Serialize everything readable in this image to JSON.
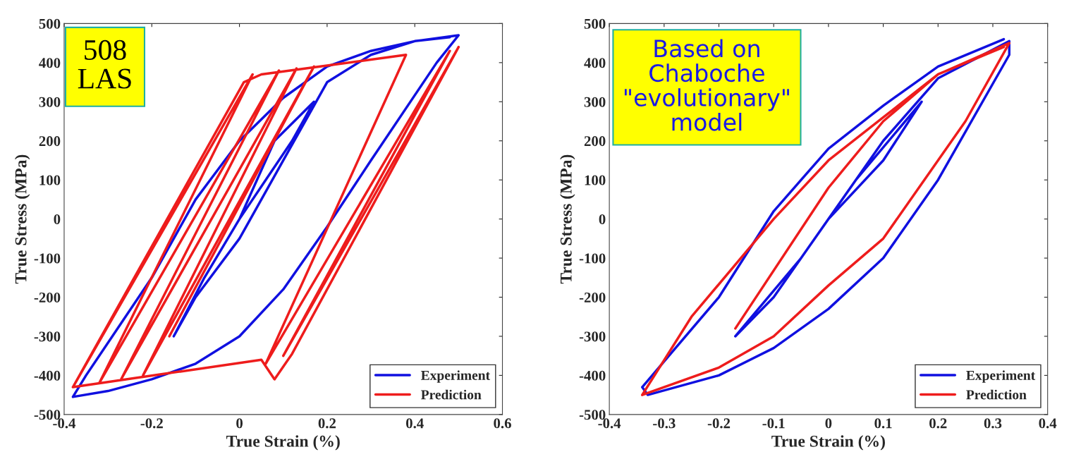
{
  "chart_data": [
    {
      "type": "line",
      "xlabel": "True Strain (%)",
      "ylabel": "True Stress (MPa)",
      "xlim": [
        -0.4,
        0.6
      ],
      "xticks": [
        -0.4,
        -0.2,
        0,
        0.2,
        0.4,
        0.6
      ],
      "ylim": [
        -500,
        500
      ],
      "yticks": [
        -500,
        -400,
        -300,
        -200,
        -100,
        0,
        100,
        200,
        300,
        400,
        500
      ],
      "grid": false,
      "legend": "bottom right",
      "marker": "none",
      "line_style": "solid",
      "annotations": [
        "508\nLAS"
      ],
      "series": [
        {
          "name": "Experiment",
          "color": "#1010e0",
          "x": [
            0,
            0.08,
            0.17,
            0.12,
            0.0,
            -0.08,
            -0.15,
            -0.1,
            0,
            0.1,
            0.2,
            0.3,
            0.4,
            0.5,
            0.45,
            0.3,
            0.2,
            0.1,
            0,
            -0.1,
            -0.2,
            -0.3,
            -0.38,
            -0.35,
            -0.2,
            -0.1,
            0,
            0.1,
            0.2,
            0.3,
            0.4,
            0.48
          ],
          "values": [
            0,
            200,
            300,
            200,
            0,
            -150,
            -300,
            -200,
            -50,
            150,
            350,
            420,
            455,
            470,
            400,
            150,
            -20,
            -180,
            -300,
            -370,
            -410,
            -440,
            -455,
            -400,
            -150,
            50,
            200,
            310,
            390,
            430,
            455,
            465
          ]
        },
        {
          "name": "Prediction",
          "color": "#ee1c1c",
          "x": [
            -0.16,
            0.17,
            -0.22,
            0.13,
            -0.27,
            0.09,
            -0.32,
            0.03,
            -0.38,
            0.01,
            0.05,
            0.38,
            0.06,
            0.48,
            0.1,
            0.5,
            0.12,
            0.08,
            0.05,
            -0.38
          ],
          "values": [
            -300,
            390,
            -400,
            385,
            -410,
            380,
            -420,
            370,
            -430,
            350,
            370,
            420,
            -370,
            430,
            -350,
            440,
            -345,
            -410,
            -360,
            -430
          ]
        }
      ]
    },
    {
      "type": "line",
      "xlabel": "True Strain (%)",
      "ylabel": "True Stress (MPa)",
      "xlim": [
        -0.4,
        0.4
      ],
      "xticks": [
        -0.4,
        -0.3,
        -0.2,
        -0.1,
        0,
        0.1,
        0.2,
        0.3,
        0.4
      ],
      "ylim": [
        -500,
        500
      ],
      "yticks": [
        -500,
        -400,
        -300,
        -200,
        -100,
        0,
        100,
        200,
        300,
        400,
        500
      ],
      "grid": false,
      "legend": "bottom right",
      "marker": "none",
      "line_style": "solid",
      "annotations": [
        "Based on\nChaboche\n\"evolutionary\"\nmodel"
      ],
      "series": [
        {
          "name": "Experiment",
          "color": "#1010e0",
          "x": [
            0,
            0.1,
            0.17,
            0.05,
            -0.05,
            -0.17,
            -0.1,
            0,
            0.1,
            0.2,
            0.33,
            0.33,
            0.2,
            0.1,
            0,
            -0.1,
            -0.2,
            -0.33,
            -0.34,
            -0.2,
            -0.1,
            0,
            0.1,
            0.2,
            0.32
          ],
          "values": [
            0,
            150,
            300,
            100,
            -100,
            -300,
            -200,
            0,
            200,
            360,
            455,
            420,
            100,
            -100,
            -230,
            -330,
            -400,
            -450,
            -430,
            -200,
            20,
            180,
            290,
            390,
            460
          ]
        },
        {
          "name": "Prediction",
          "color": "#ee1c1c",
          "x": [
            -0.17,
            0,
            0.1,
            0.2,
            0.33,
            0.25,
            0.1,
            0,
            -0.1,
            -0.2,
            -0.34,
            -0.25,
            -0.1,
            0,
            0.1,
            0.2,
            0.32
          ],
          "values": [
            -280,
            80,
            250,
            370,
            450,
            250,
            -50,
            -170,
            -300,
            -380,
            -450,
            -250,
            0,
            150,
            260,
            370,
            440
          ]
        }
      ]
    }
  ]
}
